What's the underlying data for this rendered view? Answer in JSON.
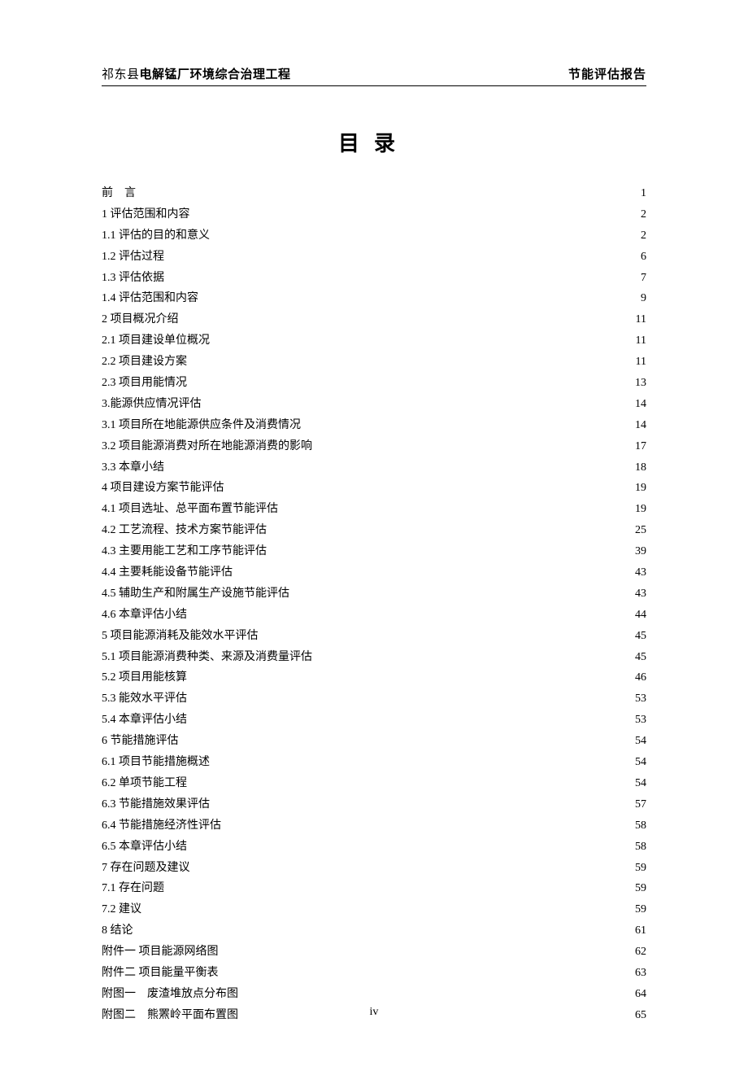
{
  "header": {
    "left_prefix": "祁东县",
    "left_bold": "电解锰厂环境综合治理工程",
    "right": "节能评估报告"
  },
  "title": "目录",
  "page_number": "iv",
  "toc": [
    {
      "label": "前　言",
      "page": "1",
      "spaced": false
    },
    {
      "label": "1 评估范围和内容",
      "page": "2"
    },
    {
      "label": "1.1 评估的目的和意义",
      "page": "2"
    },
    {
      "label": "1.2 评估过程",
      "page": "6"
    },
    {
      "label": "1.3 评估依据",
      "page": "7"
    },
    {
      "label": "1.4 评估范围和内容",
      "page": "9"
    },
    {
      "label": "2 项目概况介绍",
      "page": "11"
    },
    {
      "label": "2.1 项目建设单位概况",
      "page": "11"
    },
    {
      "label": "2.2 项目建设方案",
      "page": "11"
    },
    {
      "label": "2.3 项目用能情况",
      "page": "13"
    },
    {
      "label": "3.能源供应情况评估",
      "page": "14"
    },
    {
      "label": "3.1 项目所在地能源供应条件及消费情况",
      "page": "14"
    },
    {
      "label": "3.2 项目能源消费对所在地能源消费的影响",
      "page": "17"
    },
    {
      "label": "3.3 本章小结",
      "page": "18"
    },
    {
      "label": "4 项目建设方案节能评估",
      "page": "19"
    },
    {
      "label": "4.1 项目选址、总平面布置节能评估",
      "page": "19"
    },
    {
      "label": "4.2 工艺流程、技术方案节能评估",
      "page": "25"
    },
    {
      "label": "4.3 主要用能工艺和工序节能评估",
      "page": "39"
    },
    {
      "label": "4.4 主要耗能设备节能评估",
      "page": "43"
    },
    {
      "label": "4.5 辅助生产和附属生产设施节能评估",
      "page": "43"
    },
    {
      "label": "4.6 本章评估小结",
      "page": "44"
    },
    {
      "label": "5 项目能源消耗及能效水平评估",
      "page": "45"
    },
    {
      "label": "5.1 项目能源消费种类、来源及消费量评估",
      "page": "45"
    },
    {
      "label": "5.2 项目用能核算",
      "page": "46"
    },
    {
      "label": "5.3 能效水平评估",
      "page": "53"
    },
    {
      "label": "5.4 本章评估小结",
      "page": "53"
    },
    {
      "label": "6 节能措施评估",
      "page": "54"
    },
    {
      "label": "6.1 项目节能措施概述",
      "page": "54"
    },
    {
      "label": "6.2 单项节能工程",
      "page": "54"
    },
    {
      "label": "6.3 节能措施效果评估",
      "page": "57"
    },
    {
      "label": "6.4 节能措施经济性评估",
      "page": "58"
    },
    {
      "label": "6.5 本章评估小结",
      "page": "58"
    },
    {
      "label": "7 存在问题及建议",
      "page": "59"
    },
    {
      "label": "7.1 存在问题",
      "page": "59"
    },
    {
      "label": "7.2 建议",
      "page": "59"
    },
    {
      "label": "8 结论",
      "page": "61"
    },
    {
      "label": "附件一 项目能源网络图",
      "page": "62"
    },
    {
      "label": "附件二 项目能量平衡表",
      "page": "63"
    },
    {
      "label": "附图一　废渣堆放点分布图",
      "page": "64"
    },
    {
      "label": "附图二　熊罴岭平面布置图",
      "page": "65"
    }
  ]
}
